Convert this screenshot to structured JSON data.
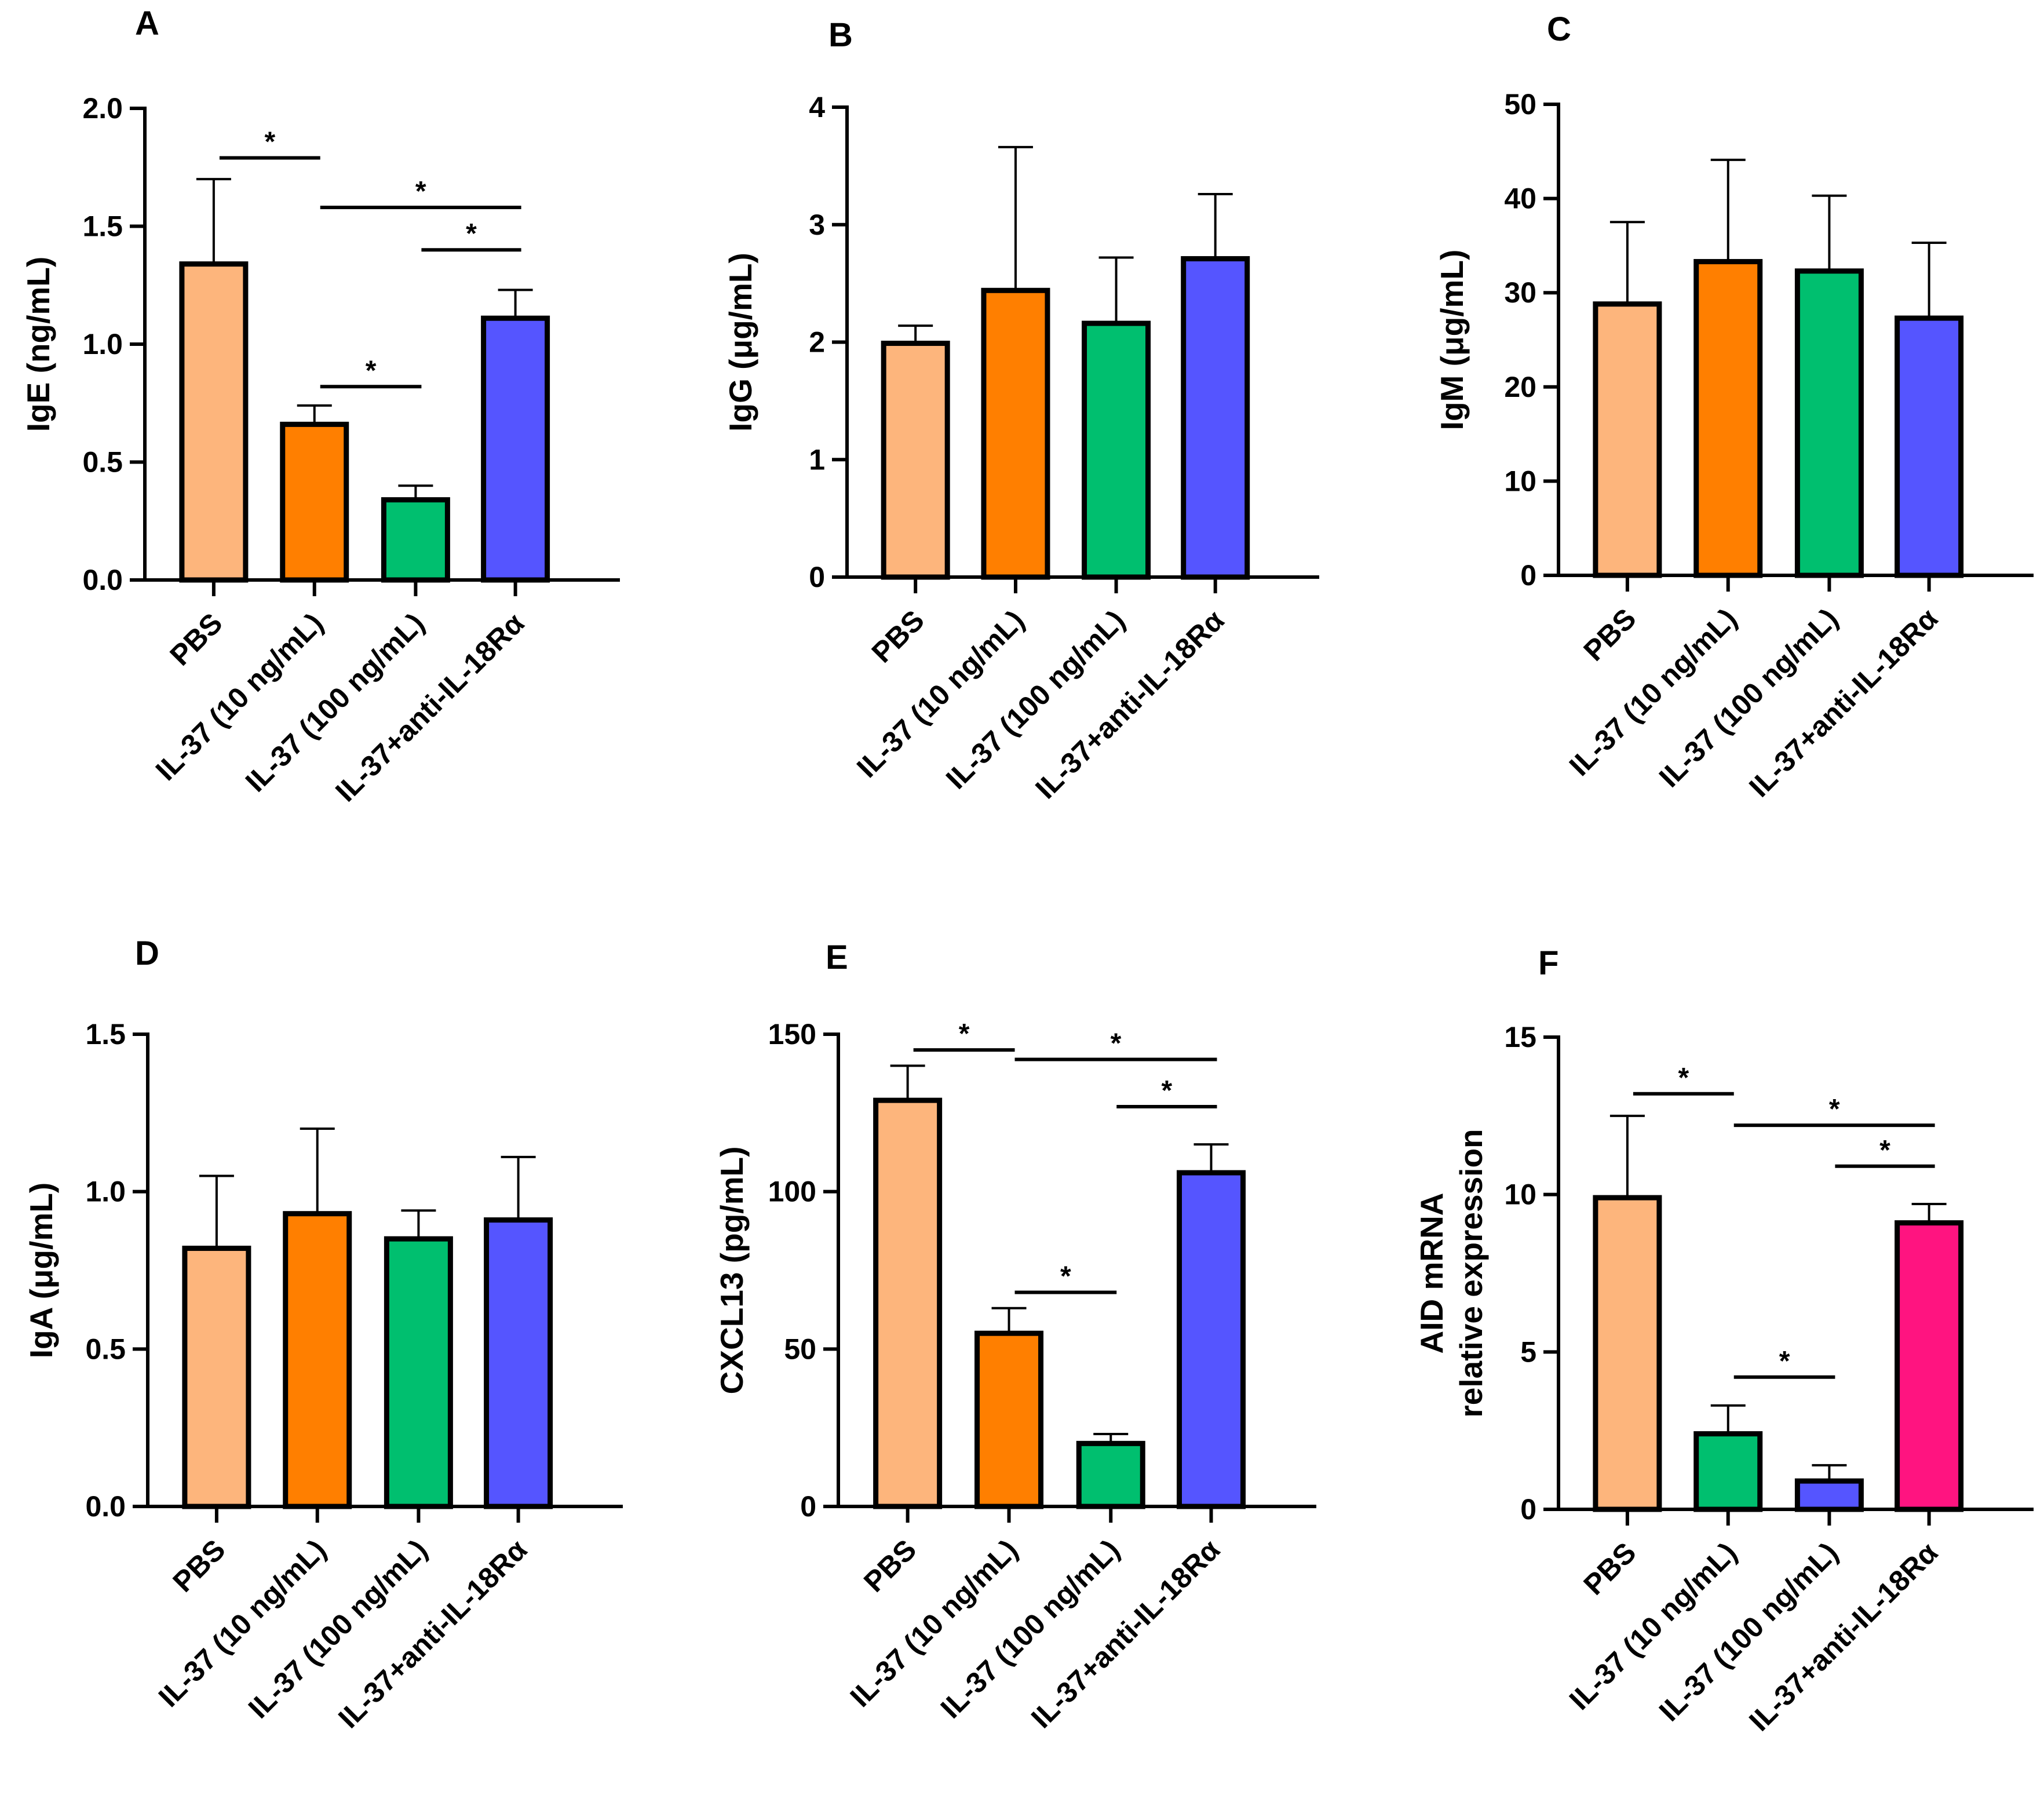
{
  "chart_data": [
    {
      "panel": "A",
      "type": "bar",
      "ylabel": [
        "IgE (ng/mL)"
      ],
      "yticks": [
        "0.0",
        "0.5",
        "1.0",
        "1.5",
        "2.0"
      ],
      "ylim": [
        0,
        2.0
      ],
      "categories": [
        "PBS",
        "IL-37 (10 ng/mL)",
        "IL-37 (100 ng/mL)",
        "IL-37+anti-IL-18Rα"
      ],
      "values": [
        1.34,
        0.66,
        0.34,
        1.11
      ],
      "errors": [
        0.36,
        0.08,
        0.06,
        0.12
      ],
      "colors": [
        "#FDB57C",
        "#FF7F00",
        "#00BF6F",
        "#5555FF"
      ],
      "significance": [
        {
          "from": 0,
          "to": 1,
          "label": "*",
          "level": 1.79
        },
        {
          "from": 1,
          "to": 3,
          "label": "*",
          "level": 1.58
        },
        {
          "from": 2,
          "to": 3,
          "label": "*",
          "level": 1.4
        },
        {
          "from": 1,
          "to": 2,
          "label": "*",
          "level": 0.82
        }
      ]
    },
    {
      "panel": "B",
      "type": "bar",
      "ylabel": [
        "IgG (μg/mL)"
      ],
      "yticks": [
        "0",
        "1",
        "2",
        "3",
        "4"
      ],
      "ylim": [
        0,
        4
      ],
      "categories": [
        "PBS",
        "IL-37 (10 ng/mL)",
        "IL-37 (100 ng/mL)",
        "IL-37+anti-IL-18Rα"
      ],
      "values": [
        1.99,
        2.44,
        2.16,
        2.71
      ],
      "errors": [
        0.15,
        1.22,
        0.56,
        0.55
      ],
      "colors": [
        "#FDB57C",
        "#FF7F00",
        "#00BF6F",
        "#5555FF"
      ],
      "significance": []
    },
    {
      "panel": "C",
      "type": "bar",
      "ylabel": [
        "IgM (μg/mL)"
      ],
      "yticks": [
        "0",
        "10",
        "20",
        "30",
        "40",
        "50"
      ],
      "ylim": [
        0,
        50
      ],
      "categories": [
        "PBS",
        "IL-37 (10 ng/mL)",
        "IL-37 (100 ng/mL)",
        "IL-37+anti-IL-18Rα"
      ],
      "values": [
        28.8,
        33.3,
        32.3,
        27.3
      ],
      "errors": [
        8.7,
        10.8,
        8.0,
        8.0
      ],
      "colors": [
        "#FDB57C",
        "#FF7F00",
        "#00BF6F",
        "#5555FF"
      ],
      "significance": []
    },
    {
      "panel": "D",
      "type": "bar",
      "ylabel": [
        "IgA (μg/mL)"
      ],
      "yticks": [
        "0.0",
        "0.5",
        "1.0",
        "1.5"
      ],
      "ylim": [
        0,
        1.5
      ],
      "categories": [
        "PBS",
        "IL-37 (10 ng/mL)",
        "IL-37 (100 ng/mL)",
        "IL-37+anti-IL-18Rα"
      ],
      "values": [
        0.82,
        0.93,
        0.85,
        0.91
      ],
      "errors": [
        0.23,
        0.27,
        0.09,
        0.2
      ],
      "colors": [
        "#FDB57C",
        "#FF7F00",
        "#00BF6F",
        "#5555FF"
      ],
      "significance": []
    },
    {
      "panel": "E",
      "type": "bar",
      "ylabel": [
        "CXCL13 (pg/mL)"
      ],
      "yticks": [
        "0",
        "50",
        "100",
        "150"
      ],
      "ylim": [
        0,
        150
      ],
      "categories": [
        "PBS",
        "IL-37 (10 ng/mL)",
        "IL-37 (100 ng/mL)",
        "IL-37+anti-IL-18Rα"
      ],
      "values": [
        129,
        55,
        20,
        106
      ],
      "errors": [
        11,
        8,
        3,
        9
      ],
      "colors": [
        "#FDB57C",
        "#FF7F00",
        "#00BF6F",
        "#5555FF"
      ],
      "significance": [
        {
          "from": 0,
          "to": 1,
          "label": "*",
          "level": 145
        },
        {
          "from": 1,
          "to": 3,
          "label": "*",
          "level": 142
        },
        {
          "from": 2,
          "to": 3,
          "label": "*",
          "level": 127
        },
        {
          "from": 1,
          "to": 2,
          "label": "*",
          "level": 68
        }
      ]
    },
    {
      "panel": "F",
      "type": "bar",
      "ylabel": [
        "AID mRNA",
        "relative expression"
      ],
      "yticks": [
        "0",
        "5",
        "10",
        "15"
      ],
      "ylim": [
        0,
        15
      ],
      "categories": [
        "PBS",
        "IL-37 (10 ng/mL)",
        "IL-37 (100 ng/mL)",
        "IL-37+anti-IL-18Rα"
      ],
      "values": [
        9.9,
        2.4,
        0.9,
        9.1
      ],
      "errors": [
        2.6,
        0.9,
        0.5,
        0.6
      ],
      "colors": [
        "#FDB57C",
        "#00BF6F",
        "#5555FF",
        "#FF1480"
      ],
      "significance": [
        {
          "from": 0,
          "to": 1,
          "label": "*",
          "level": 13.2
        },
        {
          "from": 1,
          "to": 3,
          "label": "*",
          "level": 12.2
        },
        {
          "from": 2,
          "to": 3,
          "label": "*",
          "level": 10.9
        },
        {
          "from": 1,
          "to": 2,
          "label": "*",
          "level": 4.2
        }
      ]
    }
  ]
}
